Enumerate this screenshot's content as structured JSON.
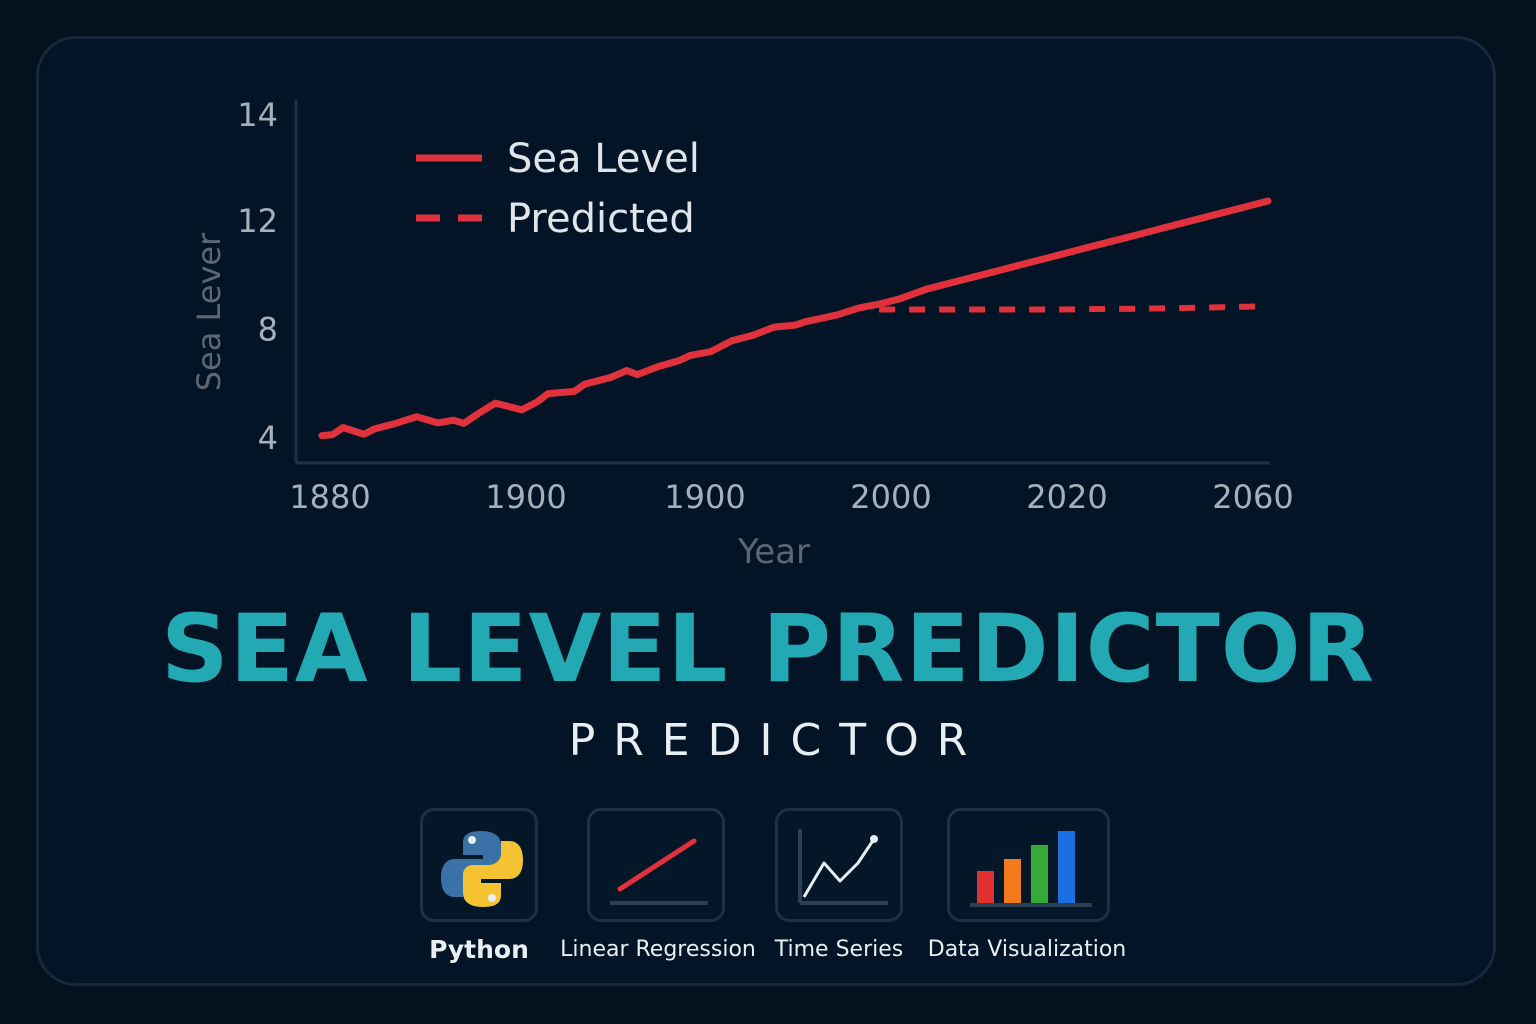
{
  "banner": {
    "title": "SEA LEVEL PREDICTOR",
    "subtitle": "PREDICTOR"
  },
  "tech_tiles": [
    {
      "label": "Python",
      "icon": "python-logo-icon"
    },
    {
      "label": "Linear Regression",
      "icon": "linear-regression-icon"
    },
    {
      "label": "Time Series",
      "icon": "time-series-icon"
    },
    {
      "label": "Data Visualization",
      "icon": "bar-chart-icon"
    }
  ],
  "colors": {
    "background": "#04121f",
    "accent_title": "#22a9b3",
    "series_red": "#e0313c",
    "python_blue": "#3a72a8",
    "python_yellow": "#f5c232",
    "bar_red": "#e2302f",
    "bar_orange": "#f37a1c",
    "bar_green": "#37a83a",
    "bar_blue": "#1b6fe0"
  },
  "chart_data": {
    "type": "line",
    "xlabel": "Year",
    "ylabel": "Sea Lever",
    "x_tick_labels": [
      "1880",
      "1900",
      "1900",
      "2000",
      "2020",
      "2060"
    ],
    "y_tick_labels": [
      "4",
      "8",
      "12",
      "14"
    ],
    "y_ticks": [
      4,
      8,
      12,
      14
    ],
    "xlim": [
      1880,
      2060
    ],
    "legend": {
      "placement": "top-left",
      "entries": [
        {
          "name": "Sea Level",
          "style": "solid"
        },
        {
          "name": "Predicted",
          "style": "dashed"
        }
      ]
    },
    "series": [
      {
        "name": "Sea Level",
        "style": "solid",
        "x": [
          1880,
          1882,
          1884,
          1888,
          1890,
          1894,
          1898,
          1902,
          1905,
          1907,
          1910,
          1913,
          1918,
          1921,
          1923,
          1928,
          1930,
          1935,
          1938,
          1940,
          1944,
          1948,
          1950,
          1954,
          1958,
          1962,
          1966,
          1970,
          1972,
          1978,
          1982,
          1986,
          1990,
          1995,
          2000,
          2006,
          2012,
          2018,
          2024,
          2030,
          2036,
          2042,
          2048,
          2054,
          2060
        ],
        "y": [
          4.05,
          4.08,
          4.35,
          4.1,
          4.3,
          4.5,
          4.75,
          4.52,
          4.62,
          4.5,
          4.9,
          5.25,
          5.0,
          5.3,
          5.6,
          5.68,
          5.95,
          6.2,
          6.45,
          6.3,
          6.6,
          6.82,
          7.0,
          7.15,
          7.55,
          7.75,
          8.05,
          8.12,
          8.25,
          8.5,
          8.75,
          8.9,
          9.1,
          9.45,
          9.7,
          10.0,
          10.3,
          10.6,
          10.9,
          11.2,
          11.5,
          11.8,
          12.1,
          12.4,
          12.7
        ]
      },
      {
        "name": "Predicted",
        "style": "dashed",
        "x": [
          1986,
          2000,
          2020,
          2040,
          2060
        ],
        "y": [
          8.7,
          8.7,
          8.7,
          8.74,
          8.82
        ]
      }
    ]
  }
}
